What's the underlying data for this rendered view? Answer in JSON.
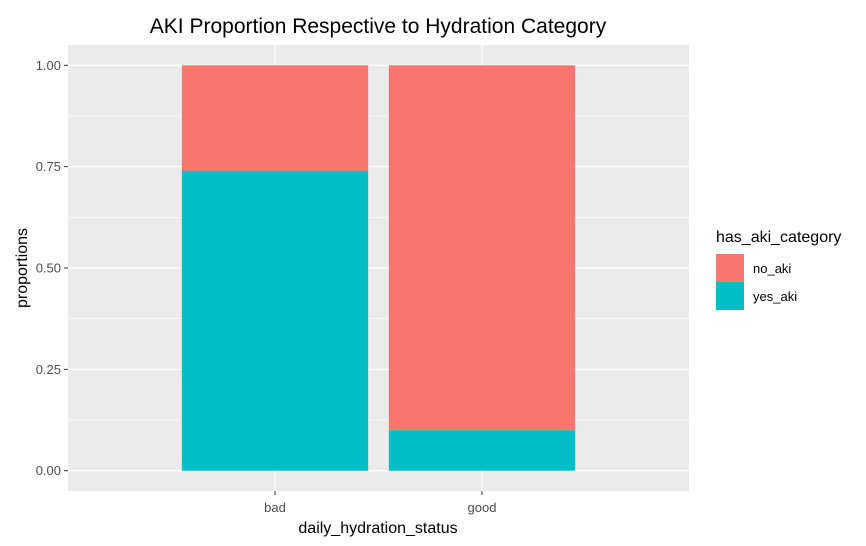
{
  "chart_data": {
    "type": "bar",
    "stacked": true,
    "title": "AKI Proportion Respective to Hydration Category",
    "xlabel": "daily_hydration_status",
    "ylabel": "proportions",
    "categories": [
      "bad",
      "good"
    ],
    "series": [
      {
        "name": "yes_aki",
        "color": "#00BFC4",
        "values": [
          0.74,
          0.1
        ]
      },
      {
        "name": "no_aki",
        "color": "#F8766D",
        "values": [
          0.26,
          0.9
        ]
      }
    ],
    "yticks": [
      "0.00",
      "0.25",
      "0.50",
      "0.75",
      "1.00"
    ],
    "ylim": [
      -0.05,
      1.05
    ],
    "grid": true,
    "legend": {
      "title": "has_aki_category",
      "position": "right",
      "entries": [
        {
          "label": "no_aki",
          "color": "#F8766D"
        },
        {
          "label": "yes_aki",
          "color": "#00BFC4"
        }
      ]
    },
    "panel_background": "#EBEBEB"
  }
}
